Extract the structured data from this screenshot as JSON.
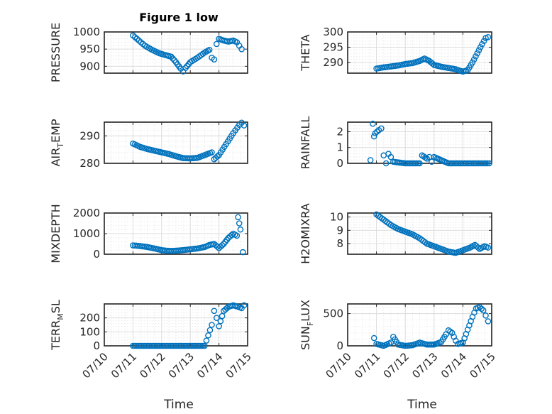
{
  "figure": {
    "title": "Figure 1 low",
    "xlabel": "Time"
  },
  "x_ticks": [
    "07/10",
    "07/11",
    "07/12",
    "07/13",
    "07/14",
    "07/15"
  ],
  "colors": {
    "marker": "#0072BD",
    "axes": "#262626",
    "grid": "#dcdcdc"
  },
  "chart_data": [
    {
      "type": "scatter",
      "ylabel": "PRESSURE",
      "ylim": [
        880,
        1000
      ],
      "yticks": [
        "900",
        "950",
        "1000"
      ],
      "xlim": [
        "07/10",
        "07/15"
      ],
      "grid": true,
      "series": [
        {
          "points": [
            [
              "07/11 00:00",
              990
            ],
            [
              "07/11 05:00",
              975
            ],
            [
              "07/11 10:00",
              960
            ],
            [
              "07/11 16:00",
              948
            ],
            [
              "07/11 22:00",
              938
            ],
            [
              "07/12 04:00",
              932
            ],
            [
              "07/12 08:00",
              928
            ],
            [
              "07/12 12:00",
              912
            ],
            [
              "07/12 16:00",
              893
            ],
            [
              "07/12 18:00",
              885
            ],
            [
              "07/12 20:00",
              895
            ],
            [
              "07/13 00:00",
              912
            ],
            [
              "07/13 06:00",
              925
            ],
            [
              "07/13 12:00",
              940
            ],
            [
              "07/13 16:00",
              948
            ],
            [
              "07/13 18:00",
              925
            ],
            [
              "07/13 20:00",
              920
            ],
            [
              "07/13 22:00",
              965
            ],
            [
              "07/14 00:00",
              980
            ],
            [
              "07/14 04:00",
              975
            ],
            [
              "07/14 08:00",
              972
            ],
            [
              "07/14 12:00",
              975
            ],
            [
              "07/14 15:00",
              970
            ],
            [
              "07/14 17:00",
              960
            ],
            [
              "07/14 19:00",
              950
            ]
          ]
        }
      ]
    },
    {
      "type": "scatter",
      "ylabel": "THETA",
      "ylim": [
        286.5,
        300
      ],
      "yticks": [
        "290",
        "295",
        "300"
      ],
      "xlim": [
        "07/10",
        "07/15"
      ],
      "grid": true,
      "series": [
        {
          "points": [
            [
              "07/11 00:00",
              288.0
            ],
            [
              "07/11 06:00",
              288.4
            ],
            [
              "07/11 12:00",
              288.7
            ],
            [
              "07/11 18:00",
              289.0
            ],
            [
              "07/12 00:00",
              289.5
            ],
            [
              "07/12 06:00",
              289.8
            ],
            [
              "07/12 12:00",
              290.5
            ],
            [
              "07/12 16:00",
              291.3
            ],
            [
              "07/12 20:00",
              290.5
            ],
            [
              "07/13 00:00",
              289.2
            ],
            [
              "07/13 06:00",
              288.6
            ],
            [
              "07/13 12:00",
              288.2
            ],
            [
              "07/13 18:00",
              287.8
            ],
            [
              "07/14 00:00",
              287.0
            ],
            [
              "07/14 04:00",
              287.5
            ],
            [
              "07/14 08:00",
              290.0
            ],
            [
              "07/14 12:00",
              293.0
            ],
            [
              "07/14 16:00",
              296.0
            ],
            [
              "07/14 19:00",
              298.0
            ],
            [
              "07/14 21:00",
              298.3
            ]
          ]
        }
      ]
    },
    {
      "type": "scatter",
      "ylabel": "AIR",
      "ylabel_sub": "T",
      "ylabel_after": "EMP",
      "ylim": [
        280,
        295
      ],
      "yticks": [
        "280",
        "290"
      ],
      "xlim": [
        "07/10",
        "07/15"
      ],
      "grid": true,
      "series": [
        {
          "points": [
            [
              "07/11 00:00",
              287.2
            ],
            [
              "07/11 06:00",
              286.0
            ],
            [
              "07/11 12:00",
              285.2
            ],
            [
              "07/11 18:00",
              284.6
            ],
            [
              "07/12 00:00",
              284.0
            ],
            [
              "07/12 06:00",
              283.4
            ],
            [
              "07/12 12:00",
              282.6
            ],
            [
              "07/12 18:00",
              281.9
            ],
            [
              "07/13 00:00",
              281.8
            ],
            [
              "07/13 06:00",
              282.0
            ],
            [
              "07/13 12:00",
              283.0
            ],
            [
              "07/13 18:00",
              284.0
            ],
            [
              "07/13 20:00",
              281.5
            ],
            [
              "07/14 00:00",
              283.0
            ],
            [
              "07/14 06:00",
              287.0
            ],
            [
              "07/14 12:00",
              291.0
            ],
            [
              "07/14 17:00",
              294.0
            ],
            [
              "07/14 19:00",
              294.8
            ],
            [
              "07/14 21:00",
              293.8
            ]
          ]
        }
      ]
    },
    {
      "type": "scatter",
      "ylabel": "RAINFALL",
      "ylim": [
        0,
        2.6
      ],
      "yticks": [
        "0",
        "1",
        "2"
      ],
      "xlim": [
        "07/10",
        "07/15"
      ],
      "grid": true,
      "series": [
        {
          "points": [
            [
              "07/10 19:00",
              0.2
            ],
            [
              "07/10 21:00",
              2.5
            ],
            [
              "07/10 22:00",
              1.7
            ],
            [
              "07/10 23:00",
              1.9
            ],
            [
              "07/11 02:00",
              2.1
            ],
            [
              "07/11 04:00",
              2.2
            ],
            [
              "07/11 06:00",
              0.5
            ],
            [
              "07/11 08:00",
              0.0
            ],
            [
              "07/11 10:00",
              0.6
            ],
            [
              "07/11 12:00",
              0.4
            ],
            [
              "07/11 14:00",
              0.1
            ],
            [
              "07/12 00:00",
              0.0
            ],
            [
              "07/12 12:00",
              0.0
            ],
            [
              "07/12 14:00",
              0.5
            ],
            [
              "07/12 18:00",
              0.3
            ],
            [
              "07/12 20:00",
              0.4
            ],
            [
              "07/12 22:00",
              0.1
            ],
            [
              "07/13 00:00",
              0.4
            ],
            [
              "07/13 12:00",
              0.0
            ],
            [
              "07/14 00:00",
              0.0
            ],
            [
              "07/14 12:00",
              0.0
            ],
            [
              "07/14 22:00",
              0.0
            ]
          ]
        }
      ]
    },
    {
      "type": "scatter",
      "ylabel": "MIXDEPTH",
      "ylim": [
        0,
        2000
      ],
      "yticks": [
        "0",
        "1000",
        "2000"
      ],
      "xlim": [
        "07/10",
        "07/15"
      ],
      "grid": true,
      "series": [
        {
          "points": [
            [
              "07/11 00:00",
              430
            ],
            [
              "07/11 06:00",
              400
            ],
            [
              "07/11 12:00",
              350
            ],
            [
              "07/11 18:00",
              280
            ],
            [
              "07/12 00:00",
              200
            ],
            [
              "07/12 06:00",
              160
            ],
            [
              "07/12 12:00",
              170
            ],
            [
              "07/12 18:00",
              200
            ],
            [
              "07/13 00:00",
              240
            ],
            [
              "07/13 06:00",
              280
            ],
            [
              "07/13 12:00",
              350
            ],
            [
              "07/13 16:00",
              450
            ],
            [
              "07/13 20:00",
              500
            ],
            [
              "07/14 00:00",
              300
            ],
            [
              "07/14 04:00",
              500
            ],
            [
              "07/14 08:00",
              800
            ],
            [
              "07/14 12:00",
              1000
            ],
            [
              "07/14 15:00",
              900
            ],
            [
              "07/14 16:00",
              1800
            ],
            [
              "07/14 17:00",
              1500
            ],
            [
              "07/14 18:00",
              1200
            ],
            [
              "07/14 20:00",
              100
            ]
          ]
        }
      ]
    },
    {
      "type": "scatter",
      "ylabel": "H2OMIXRA",
      "ylim": [
        7.2,
        10.3
      ],
      "yticks": [
        "8",
        "9",
        "10"
      ],
      "xlim": [
        "07/10",
        "07/15"
      ],
      "grid": true,
      "series": [
        {
          "points": [
            [
              "07/11 00:00",
              10.2
            ],
            [
              "07/11 06:00",
              9.8
            ],
            [
              "07/11 12:00",
              9.4
            ],
            [
              "07/11 18:00",
              9.1
            ],
            [
              "07/12 00:00",
              8.9
            ],
            [
              "07/12 06:00",
              8.7
            ],
            [
              "07/12 12:00",
              8.4
            ],
            [
              "07/12 18:00",
              8.0
            ],
            [
              "07/13 00:00",
              7.8
            ],
            [
              "07/13 06:00",
              7.6
            ],
            [
              "07/13 12:00",
              7.4
            ],
            [
              "07/13 18:00",
              7.3
            ],
            [
              "07/14 00:00",
              7.5
            ],
            [
              "07/14 06:00",
              7.7
            ],
            [
              "07/14 10:00",
              7.9
            ],
            [
              "07/14 14:00",
              7.6
            ],
            [
              "07/14 18:00",
              7.8
            ],
            [
              "07/14 21:00",
              7.7
            ]
          ]
        }
      ]
    },
    {
      "type": "scatter",
      "ylabel": "TERR",
      "ylabel_sub": "M",
      "ylabel_after": "SL",
      "ylim": [
        0,
        300
      ],
      "yticks": [
        "0",
        "100",
        "200"
      ],
      "xlim": [
        "07/10",
        "07/15"
      ],
      "grid": true,
      "series": [
        {
          "points": [
            [
              "07/11 00:00",
              0
            ],
            [
              "07/11 12:00",
              0
            ],
            [
              "07/12 00:00",
              0
            ],
            [
              "07/12 12:00",
              0
            ],
            [
              "07/13 00:00",
              0
            ],
            [
              "07/13 12:00",
              0
            ],
            [
              "07/13 18:00",
              150
            ],
            [
              "07/13 20:00",
              250
            ],
            [
              "07/13 22:00",
              200
            ],
            [
              "07/14 00:00",
              140
            ],
            [
              "07/14 04:00",
              250
            ],
            [
              "07/14 08:00",
              280
            ],
            [
              "07/14 12:00",
              290
            ],
            [
              "07/14 16:00",
              280
            ],
            [
              "07/14 19:00",
              270
            ],
            [
              "07/14 21:00",
              290
            ]
          ]
        }
      ]
    },
    {
      "type": "scatter",
      "ylabel": "SUN",
      "ylabel_sub": "F",
      "ylabel_after": "LUX",
      "ylim": [
        0,
        650
      ],
      "yticks": [
        "0",
        "500"
      ],
      "xlim": [
        "07/10",
        "07/15"
      ],
      "grid": true,
      "series": [
        {
          "points": [
            [
              "07/10 22:00",
              120
            ],
            [
              "07/11 00:00",
              30
            ],
            [
              "07/11 06:00",
              0
            ],
            [
              "07/11 12:00",
              50
            ],
            [
              "07/11 14:00",
              140
            ],
            [
              "07/11 18:00",
              20
            ],
            [
              "07/12 00:00",
              0
            ],
            [
              "07/12 06:00",
              10
            ],
            [
              "07/12 12:00",
              50
            ],
            [
              "07/12 18:00",
              20
            ],
            [
              "07/13 00:00",
              20
            ],
            [
              "07/13 06:00",
              60
            ],
            [
              "07/13 10:00",
              180
            ],
            [
              "07/13 12:00",
              240
            ],
            [
              "07/13 15:00",
              200
            ],
            [
              "07/13 18:00",
              80
            ],
            [
              "07/13 20:00",
              30
            ],
            [
              "07/14 00:00",
              50
            ],
            [
              "07/14 04:00",
              250
            ],
            [
              "07/14 08:00",
              450
            ],
            [
              "07/14 11:00",
              580
            ],
            [
              "07/14 14:00",
              600
            ],
            [
              "07/14 17:00",
              550
            ],
            [
              "07/14 19:00",
              470
            ],
            [
              "07/14 21:00",
              380
            ]
          ]
        }
      ]
    }
  ]
}
